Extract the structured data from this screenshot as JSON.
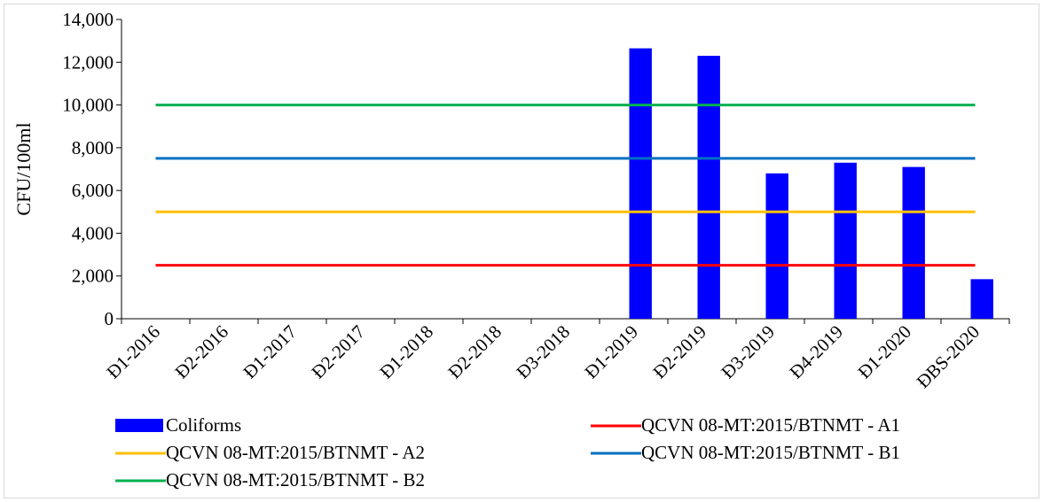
{
  "chart_data": {
    "type": "bar",
    "title": "",
    "xlabel": "",
    "ylabel": "CFU/100ml",
    "ylim": [
      0,
      14000
    ],
    "yticks": [
      0,
      2000,
      4000,
      6000,
      8000,
      10000,
      12000,
      14000
    ],
    "ytick_labels": [
      "0",
      "2,000",
      "4,000",
      "6,000",
      "8,000",
      "10,000",
      "12,000",
      "14,000"
    ],
    "categories": [
      "Đ1-2016",
      "Đ2-2016",
      "Đ1-2017",
      "Đ2-2017",
      "Đ1-2018",
      "Đ2-2018",
      "Đ3-2018",
      "Đ1-2019",
      "Đ2-2019",
      "Đ3-2019",
      "Đ4-2019",
      "Đ1-2020",
      "ĐBS-2020"
    ],
    "grid": false,
    "legend_position": "bottom",
    "series": [
      {
        "name": "Coliforms",
        "kind": "bar",
        "color": "#0000ff",
        "values": [
          null,
          null,
          null,
          null,
          null,
          null,
          null,
          12650,
          12300,
          6800,
          7300,
          7100,
          1850
        ]
      },
      {
        "name": "QCVN 08-MT:2015/BTNMT - A1",
        "kind": "line",
        "color": "#ff0000",
        "values": [
          2500,
          2500,
          2500,
          2500,
          2500,
          2500,
          2500,
          2500,
          2500,
          2500,
          2500,
          2500,
          2500
        ]
      },
      {
        "name": "QCVN 08-MT:2015/BTNMT - A2",
        "kind": "line",
        "color": "#ffc000",
        "values": [
          5000,
          5000,
          5000,
          5000,
          5000,
          5000,
          5000,
          5000,
          5000,
          5000,
          5000,
          5000,
          5000
        ]
      },
      {
        "name": "QCVN 08-MT:2015/BTNMT - B1",
        "kind": "line",
        "color": "#0070c0",
        "values": [
          7500,
          7500,
          7500,
          7500,
          7500,
          7500,
          7500,
          7500,
          7500,
          7500,
          7500,
          7500,
          7500
        ]
      },
      {
        "name": "QCVN 08-MT:2015/BTNMT - B2",
        "kind": "line",
        "color": "#00b050",
        "values": [
          10000,
          10000,
          10000,
          10000,
          10000,
          10000,
          10000,
          10000,
          10000,
          10000,
          10000,
          10000,
          10000
        ]
      }
    ]
  }
}
